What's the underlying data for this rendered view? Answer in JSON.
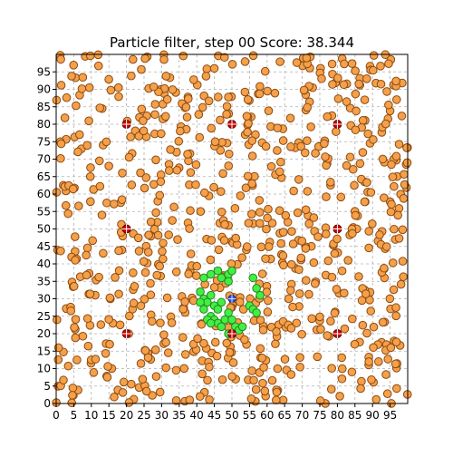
{
  "title": "Particle filter, step 00 Score: 38.344",
  "colors": {
    "particle_fill": "#f5a04a",
    "particle_edge": "#8b4a10",
    "landmark_fill": "#cc0000",
    "landmark_edge": "#5a0000",
    "robot_fill": "#3355ee",
    "estimate_fill": "#44ee44",
    "estimate_edge": "#228822",
    "grid": "#b0b0b0"
  },
  "chart_data": {
    "type": "scatter",
    "title": "Particle filter, step 00 Score: 38.344",
    "xlim": [
      0,
      100
    ],
    "ylim": [
      0,
      100
    ],
    "xticks": [
      "0",
      "5",
      "10",
      "15",
      "20",
      "25",
      "30",
      "35",
      "40",
      "45",
      "50",
      "55",
      "60",
      "65",
      "70",
      "75",
      "80",
      "85",
      "90",
      "95"
    ],
    "yticks": [
      "0",
      "5",
      "10",
      "15",
      "20",
      "25",
      "30",
      "35",
      "40",
      "45",
      "50",
      "55",
      "60",
      "65",
      "70",
      "75",
      "80",
      "85",
      "90",
      "95"
    ],
    "grid": true,
    "landmarks": [
      [
        20,
        80
      ],
      [
        50,
        80
      ],
      [
        80,
        80
      ],
      [
        20,
        50
      ],
      [
        80,
        50
      ],
      [
        20,
        20
      ],
      [
        50,
        20
      ],
      [
        80,
        20
      ]
    ],
    "robot": [
      50,
      30
    ],
    "estimate_particles": [
      [
        42,
        36
      ],
      [
        44,
        37
      ],
      [
        46,
        38
      ],
      [
        47,
        36
      ],
      [
        49,
        37
      ],
      [
        50,
        38
      ],
      [
        49,
        35
      ],
      [
        56,
        36
      ],
      [
        57,
        33
      ],
      [
        58,
        31
      ],
      [
        55,
        28
      ],
      [
        56,
        27
      ],
      [
        57,
        26
      ],
      [
        41,
        32
      ],
      [
        42,
        30
      ],
      [
        43,
        29
      ],
      [
        44,
        31
      ],
      [
        45,
        28
      ],
      [
        46,
        27
      ],
      [
        47,
        29
      ],
      [
        44,
        25
      ],
      [
        45,
        24
      ],
      [
        46,
        23
      ],
      [
        47,
        22
      ],
      [
        48,
        24
      ],
      [
        49,
        26
      ],
      [
        50,
        24
      ],
      [
        51,
        22
      ],
      [
        49,
        20
      ],
      [
        52,
        21
      ],
      [
        53,
        22
      ],
      [
        42,
        27
      ],
      [
        43,
        24
      ],
      [
        41,
        29
      ],
      [
        44,
        23
      ]
    ],
    "particle_count": 800,
    "particle_seed": 38344
  }
}
